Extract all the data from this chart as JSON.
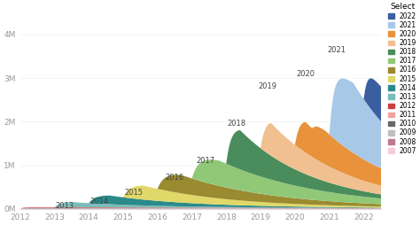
{
  "title": "Select",
  "colors": {
    "2022": "#3a5fa0",
    "2021": "#a8c8e8",
    "2020": "#e8923c",
    "2019": "#f0c090",
    "2018": "#4a8c5c",
    "2017": "#90c878",
    "2016": "#9a8a30",
    "2015": "#e0d868",
    "2014": "#2a8a8a",
    "2013": "#7abcb8",
    "2012": "#c84040",
    "2011": "#f0a0a0",
    "2010": "#686868",
    "2009": "#c0c0c0",
    "2008": "#c07890",
    "2007": "#f5ccd8"
  },
  "background_color": "#ffffff",
  "ylim": [
    0,
    4700000
  ],
  "yticks": [
    0,
    1000000,
    2000000,
    3000000,
    4000000
  ],
  "ytick_labels": [
    "0M",
    "1M",
    "2M",
    "3M",
    "4M"
  ],
  "xlim": [
    2012,
    2022.5
  ]
}
